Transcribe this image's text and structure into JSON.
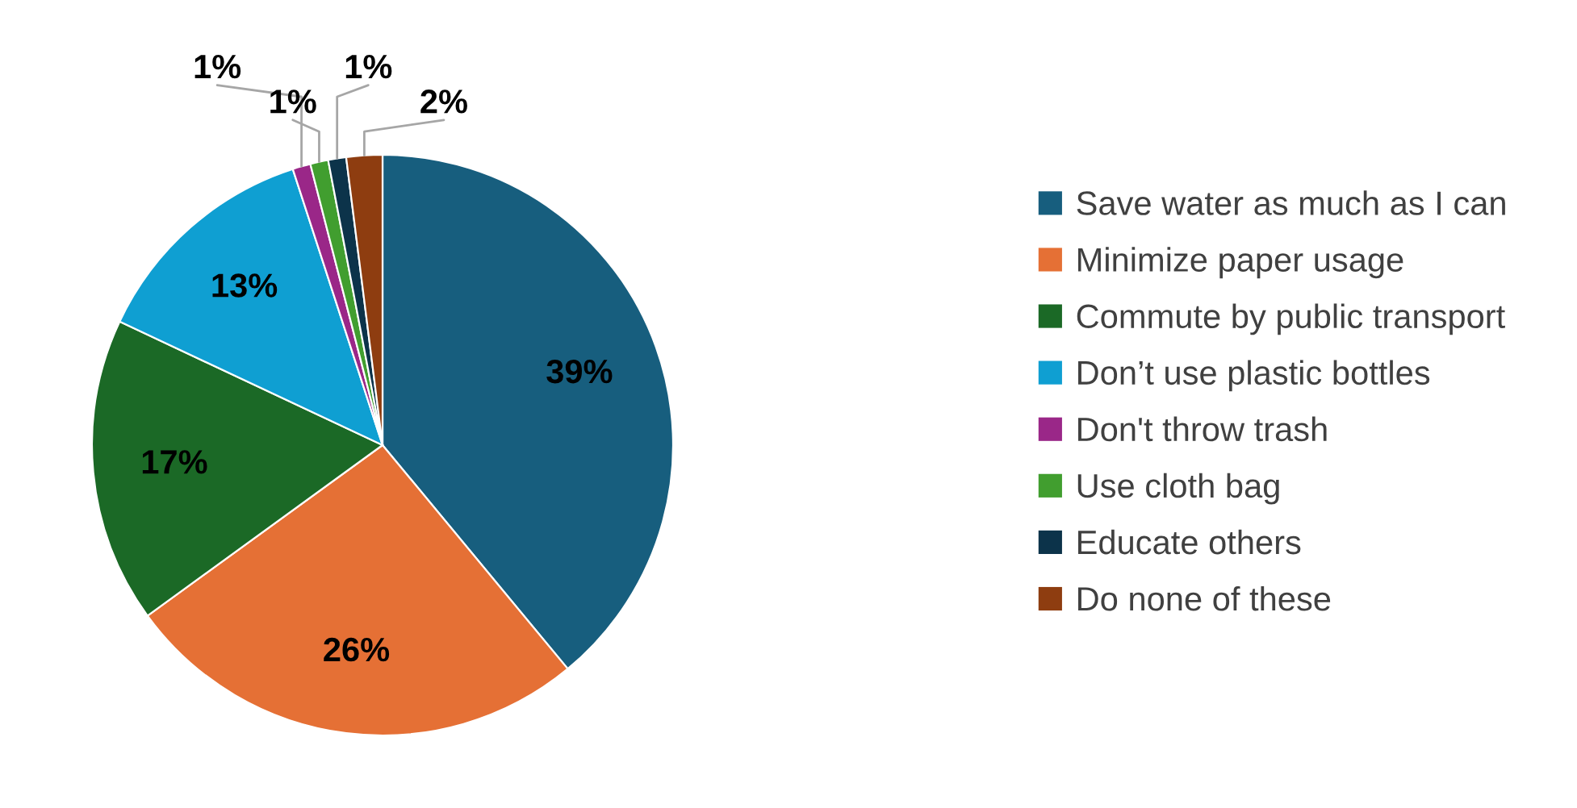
{
  "chart_data": {
    "type": "pie",
    "categories": [
      "Save water as much as I can",
      "Minimize paper usage",
      "Commute by public transport",
      "Don’t use plastic bottles",
      "Don't throw trash",
      "Use cloth bag",
      "Educate others",
      "Do none of these"
    ],
    "values": [
      39,
      26,
      17,
      13,
      1,
      1,
      1,
      2
    ],
    "value_labels": [
      "39%",
      "26%",
      "17%",
      "13%",
      "1%",
      "1%",
      "1%",
      "2%"
    ],
    "colors": [
      "#175e7e",
      "#e57035",
      "#1b6926",
      "#0f9fd2",
      "#9a2788",
      "#419e2f",
      "#0c334a",
      "#8e3d10"
    ],
    "legend": "right"
  }
}
